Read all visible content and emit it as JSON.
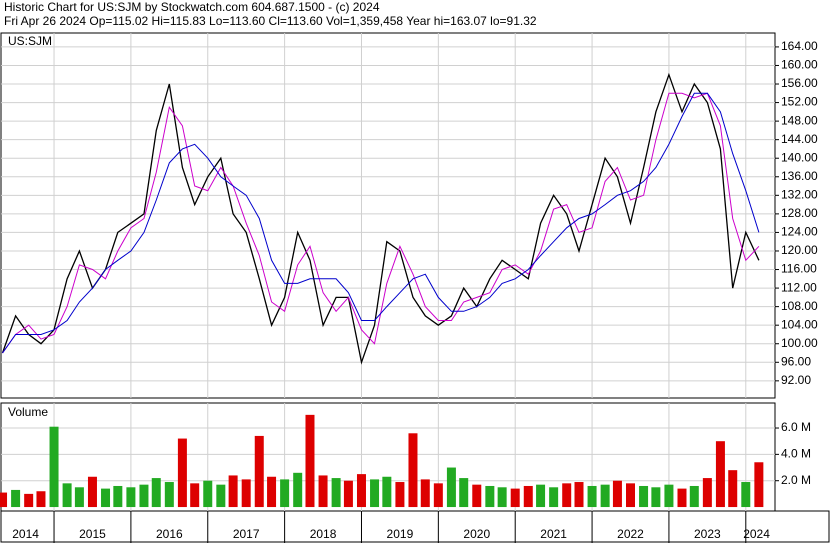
{
  "chart_data": [
    {
      "type": "line",
      "title": "Historic Chart for US:SJM by Stockwatch.com 604.687.1500 - (c) 2024",
      "subtitle": "Fri Apr 26 2024  Op=115.02  Hi=115.83  Lo=113.60  Cl=113.60  Vol=1,359,458  Year hi=163.07  lo=91.32",
      "label": "US:SJM",
      "x": [
        2014.33,
        2014.5,
        2014.67,
        2014.83,
        2015.0,
        2015.17,
        2015.33,
        2015.5,
        2015.67,
        2015.83,
        2016.0,
        2016.17,
        2016.33,
        2016.5,
        2016.67,
        2016.83,
        2017.0,
        2017.17,
        2017.33,
        2017.5,
        2017.67,
        2017.83,
        2018.0,
        2018.17,
        2018.33,
        2018.5,
        2018.67,
        2018.83,
        2019.0,
        2019.17,
        2019.33,
        2019.5,
        2019.67,
        2019.83,
        2020.0,
        2020.17,
        2020.33,
        2020.5,
        2020.67,
        2020.83,
        2021.0,
        2021.17,
        2021.33,
        2021.5,
        2021.67,
        2021.83,
        2022.0,
        2022.17,
        2022.33,
        2022.5,
        2022.67,
        2022.83,
        2023.0,
        2023.17,
        2023.33,
        2023.5,
        2023.67,
        2023.83,
        2024.0,
        2024.17
      ],
      "series": [
        {
          "color": "#000000",
          "values": [
            98,
            106,
            102,
            100,
            103,
            114,
            120,
            112,
            116,
            124,
            126,
            128,
            146,
            156,
            138,
            130,
            136,
            140,
            128,
            124,
            114,
            104,
            110,
            124,
            118,
            104,
            110,
            110,
            96,
            104,
            122,
            120,
            110,
            106,
            104,
            106,
            112,
            108,
            114,
            118,
            116,
            114,
            126,
            132,
            128,
            120,
            130,
            140,
            136,
            126,
            138,
            150,
            158,
            150,
            156,
            152,
            142,
            112,
            124,
            118
          ]
        },
        {
          "color": "#cc00cc",
          "values": [
            98,
            102,
            104,
            101,
            102,
            108,
            117,
            116,
            114,
            120,
            125,
            127,
            137,
            151,
            147,
            134,
            133,
            138,
            134,
            126,
            119,
            109,
            107,
            117,
            121,
            111,
            107,
            110,
            103,
            100,
            113,
            121,
            115,
            108,
            105,
            105,
            109,
            110,
            111,
            116,
            117,
            115,
            120,
            129,
            130,
            124,
            125,
            135,
            138,
            131,
            132,
            144,
            154,
            154,
            153,
            154,
            147,
            127,
            118,
            121
          ]
        },
        {
          "color": "#0000cc",
          "values": [
            98,
            102,
            102,
            102,
            103,
            105,
            109,
            112,
            116,
            118,
            120,
            124,
            131,
            139,
            142,
            143,
            140,
            136,
            134,
            132,
            127,
            118,
            113,
            113,
            114,
            114,
            114,
            111,
            105,
            105,
            108,
            111,
            114,
            115,
            110,
            107,
            107,
            108,
            110,
            113,
            114,
            116,
            119,
            122,
            125,
            127,
            128,
            130,
            132,
            133,
            135,
            138,
            143,
            149,
            154,
            154,
            150,
            141,
            133,
            124
          ]
        }
      ],
      "xlim": [
        2014.31,
        2024.38
      ],
      "xgrid": [
        2015,
        2016,
        2017,
        2018,
        2019,
        2020,
        2021,
        2022,
        2023,
        2024
      ],
      "ylim": [
        88.3,
        167
      ],
      "yticks": [
        {
          "value": 92,
          "label": "92.00"
        },
        {
          "value": 96,
          "label": "96.00"
        },
        {
          "value": 100,
          "label": "100.00"
        },
        {
          "value": 104,
          "label": "104.00"
        },
        {
          "value": 108,
          "label": "108.00"
        },
        {
          "value": 112,
          "label": "112.00"
        },
        {
          "value": 116,
          "label": "116.00"
        },
        {
          "value": 120,
          "label": "120.00"
        },
        {
          "value": 124,
          "label": "124.00"
        },
        {
          "value": 128,
          "label": "128.00"
        },
        {
          "value": 132,
          "label": "132.00"
        },
        {
          "value": 136,
          "label": "136.00"
        },
        {
          "value": 140,
          "label": "140.00"
        },
        {
          "value": 144,
          "label": "144.00"
        },
        {
          "value": 148,
          "label": "148.00"
        },
        {
          "value": 152,
          "label": "152.00"
        },
        {
          "value": 156,
          "label": "156.00"
        },
        {
          "value": 160,
          "label": "160.00"
        },
        {
          "value": 164,
          "label": "164.00"
        }
      ],
      "grid": true
    },
    {
      "type": "bar",
      "title": "Volume",
      "x": [
        2014.33,
        2014.5,
        2014.67,
        2014.83,
        2015.0,
        2015.17,
        2015.33,
        2015.5,
        2015.67,
        2015.83,
        2016.0,
        2016.17,
        2016.33,
        2016.5,
        2016.67,
        2016.83,
        2017.0,
        2017.17,
        2017.33,
        2017.5,
        2017.67,
        2017.83,
        2018.0,
        2018.17,
        2018.33,
        2018.5,
        2018.67,
        2018.83,
        2019.0,
        2019.17,
        2019.33,
        2019.5,
        2019.67,
        2019.83,
        2020.0,
        2020.17,
        2020.33,
        2020.5,
        2020.67,
        2020.83,
        2021.0,
        2021.17,
        2021.33,
        2021.5,
        2021.67,
        2021.83,
        2022.0,
        2022.17,
        2022.33,
        2022.5,
        2022.67,
        2022.83,
        2023.0,
        2023.17,
        2023.33,
        2023.5,
        2023.67,
        2023.83,
        2024.0,
        2024.17
      ],
      "values": [
        1100000,
        1300000,
        1000000,
        1200000,
        6100000,
        1800000,
        1500000,
        2300000,
        1400000,
        1600000,
        1500000,
        1700000,
        2200000,
        1900000,
        5200000,
        1800000,
        2000000,
        1700000,
        2400000,
        2100000,
        5400000,
        2300000,
        2100000,
        2600000,
        7000000,
        2400000,
        2200000,
        2000000,
        2500000,
        2100000,
        2300000,
        1900000,
        5600000,
        2100000,
        1800000,
        3000000,
        2200000,
        1700000,
        1600000,
        1500000,
        1400000,
        1600000,
        1700000,
        1500000,
        1800000,
        1900000,
        1600000,
        1700000,
        2000000,
        1800000,
        1600000,
        1500000,
        1700000,
        1400000,
        1600000,
        2200000,
        5000000,
        2800000,
        1900000,
        3400000
      ],
      "colors": [
        "#dd0000",
        "#22aa22",
        "#dd0000",
        "#dd0000",
        "#22aa22",
        "#22aa22",
        "#22aa22",
        "#dd0000",
        "#22aa22",
        "#22aa22",
        "#22aa22",
        "#22aa22",
        "#22aa22",
        "#22aa22",
        "#dd0000",
        "#dd0000",
        "#22aa22",
        "#22aa22",
        "#dd0000",
        "#dd0000",
        "#dd0000",
        "#dd0000",
        "#22aa22",
        "#22aa22",
        "#dd0000",
        "#dd0000",
        "#22aa22",
        "#dd0000",
        "#dd0000",
        "#22aa22",
        "#22aa22",
        "#dd0000",
        "#dd0000",
        "#dd0000",
        "#dd0000",
        "#22aa22",
        "#22aa22",
        "#dd0000",
        "#22aa22",
        "#22aa22",
        "#dd0000",
        "#dd0000",
        "#22aa22",
        "#22aa22",
        "#dd0000",
        "#dd0000",
        "#22aa22",
        "#22aa22",
        "#dd0000",
        "#dd0000",
        "#22aa22",
        "#22aa22",
        "#22aa22",
        "#dd0000",
        "#22aa22",
        "#dd0000",
        "#dd0000",
        "#dd0000",
        "#22aa22",
        "#dd0000"
      ],
      "xlim": [
        2014.31,
        2024.38
      ],
      "xgrid": [
        2015,
        2016,
        2017,
        2018,
        2019,
        2020,
        2021,
        2022,
        2023,
        2024
      ],
      "xticks": [
        {
          "value": 2014.63,
          "label": "2014"
        },
        {
          "value": 2015.5,
          "label": "2015"
        },
        {
          "value": 2016.5,
          "label": "2016"
        },
        {
          "value": 2017.5,
          "label": "2017"
        },
        {
          "value": 2018.5,
          "label": "2018"
        },
        {
          "value": 2019.5,
          "label": "2019"
        },
        {
          "value": 2020.5,
          "label": "2020"
        },
        {
          "value": 2021.5,
          "label": "2021"
        },
        {
          "value": 2022.5,
          "label": "2022"
        },
        {
          "value": 2023.5,
          "label": "2023"
        },
        {
          "value": 2024.14,
          "label": "2024"
        }
      ],
      "ylim": [
        -300000,
        7900000
      ],
      "yticks": [
        {
          "value": 2000000,
          "label": "2.0 M"
        },
        {
          "value": 4000000,
          "label": "4.0 M"
        },
        {
          "value": 6000000,
          "label": "6.0 M"
        }
      ],
      "grid": true
    }
  ]
}
